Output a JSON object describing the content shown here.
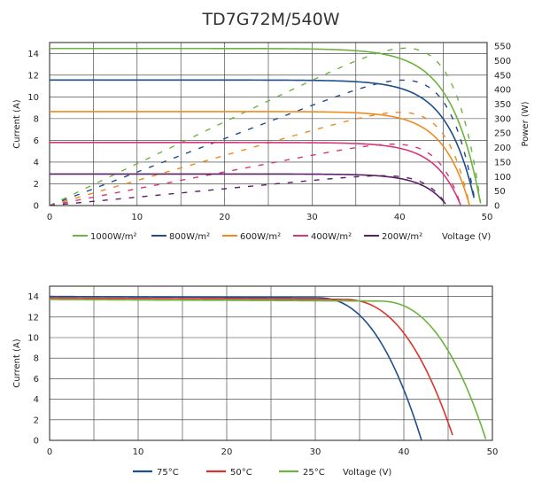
{
  "title": "TD7G72M/540W",
  "chart_data": [
    {
      "type": "line",
      "name": "iv-pv-irradiance",
      "xlabel": "Voltage (V)",
      "ylabel": "Current (A)",
      "y2label": "Power (W)",
      "xlim": [
        0,
        50
      ],
      "ylim": [
        0,
        15
      ],
      "y2lim": [
        0,
        562.5
      ],
      "x_ticks": [
        "0",
        "10",
        "20",
        "30",
        "40",
        "50"
      ],
      "y_ticks": [
        "0",
        "2",
        "4",
        "6",
        "8",
        "10",
        "12",
        "14"
      ],
      "y2_ticks": [
        "0",
        "50",
        "100",
        "150",
        "200",
        "250",
        "300",
        "350",
        "400",
        "450",
        "500",
        "550"
      ],
      "grid": true,
      "legend_position": "bottom",
      "series": [
        {
          "name": "1000W/m²",
          "color": "#6db33f",
          "isc": 14.45,
          "voc": 49.3,
          "vmp": 41.6,
          "imp": 13.0
        },
        {
          "name": "800W/m²",
          "color": "#1f4e8c",
          "isc": 11.55,
          "voc": 48.7,
          "vmp": 41.4,
          "imp": 10.4
        },
        {
          "name": "600W/m²",
          "color": "#ef8a1e",
          "isc": 8.65,
          "voc": 48.0,
          "vmp": 41.0,
          "imp": 7.8
        },
        {
          "name": "400W/m²",
          "color": "#d6367a",
          "isc": 5.8,
          "voc": 47.0,
          "vmp": 40.4,
          "imp": 5.2
        },
        {
          "name": "200W/m²",
          "color": "#5a2067",
          "isc": 2.9,
          "voc": 45.4,
          "vmp": 39.2,
          "imp": 2.6
        }
      ]
    },
    {
      "type": "line",
      "name": "iv-temperature",
      "xlabel": "Voltage (V)",
      "ylabel": "Current (A)",
      "xlim": [
        0,
        50
      ],
      "ylim": [
        0,
        15
      ],
      "x_ticks": [
        "0",
        "10",
        "20",
        "30",
        "40",
        "50"
      ],
      "y_ticks": [
        "0",
        "2",
        "4",
        "6",
        "8",
        "10",
        "12",
        "14"
      ],
      "grid": true,
      "legend_position": "bottom",
      "series": [
        {
          "name": "75°C",
          "color": "#1f4e8c",
          "isc": 14.0,
          "voc": 42.0,
          "knee": 30.0
        },
        {
          "name": "50°C",
          "color": "#d9352b",
          "isc": 13.85,
          "voc": 45.7,
          "knee": 33.0
        },
        {
          "name": "25°C",
          "color": "#6db33f",
          "isc": 13.7,
          "voc": 49.3,
          "knee": 37.0
        }
      ]
    }
  ]
}
